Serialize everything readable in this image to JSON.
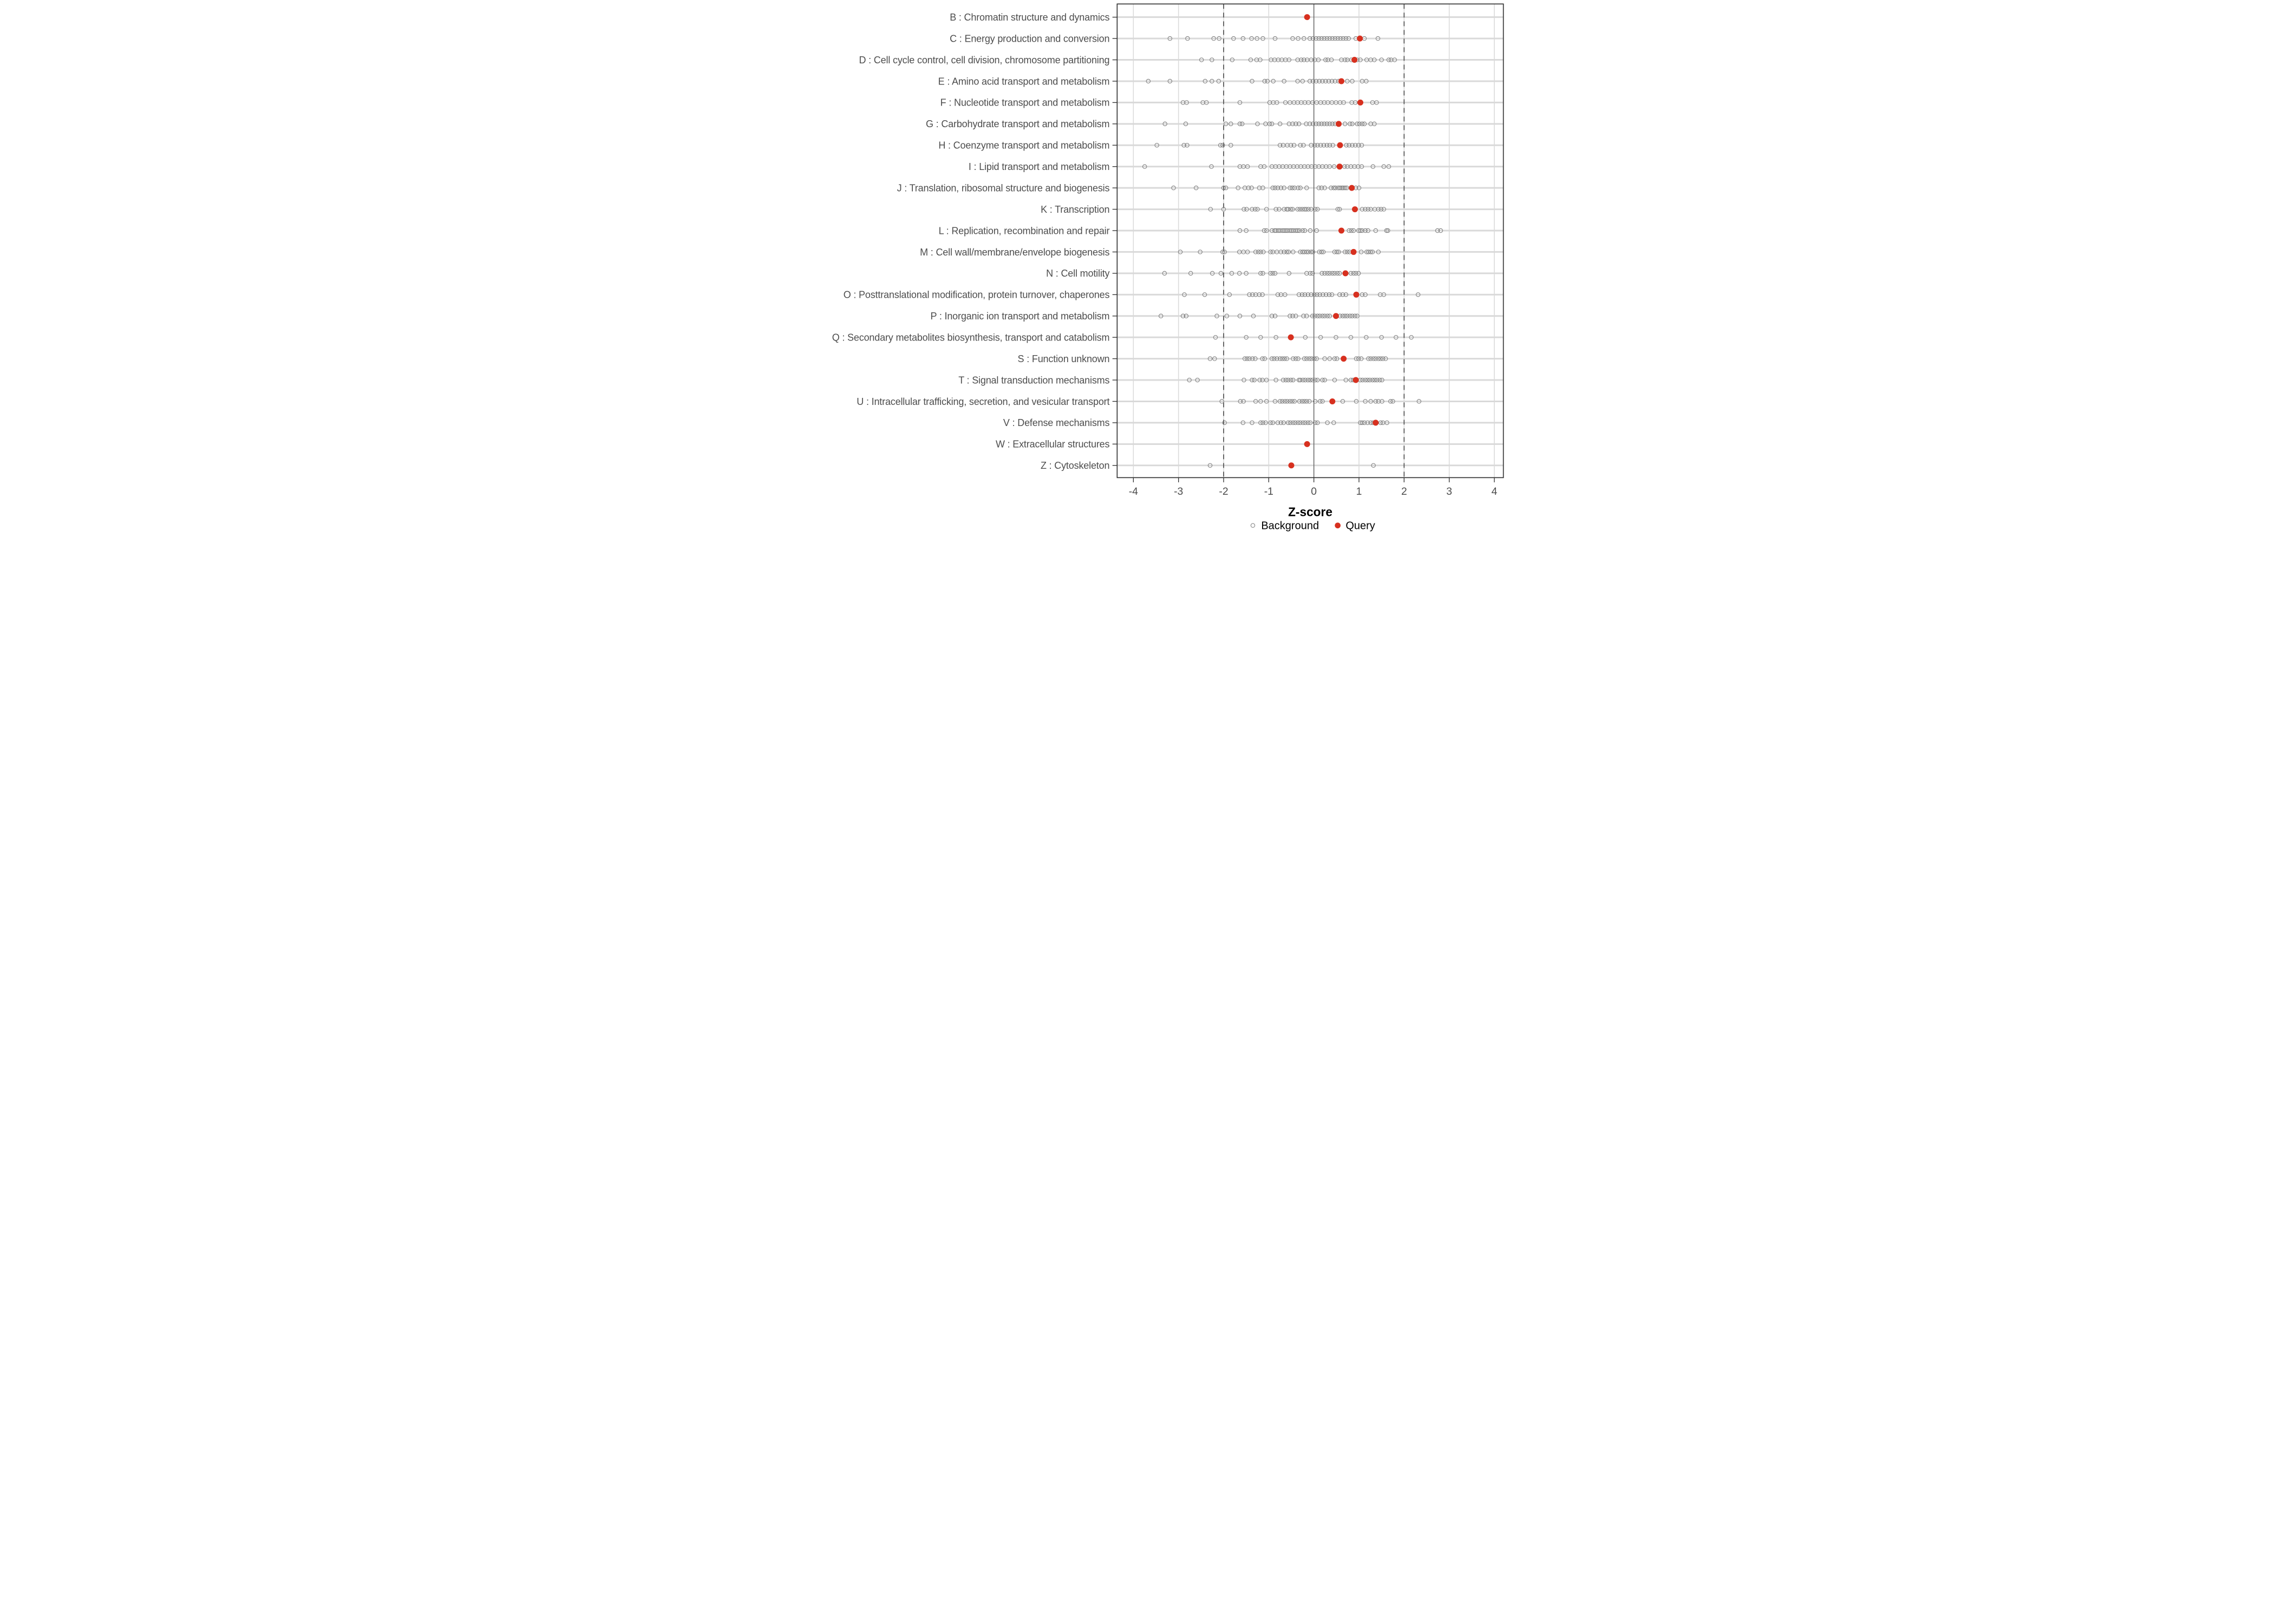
{
  "chart_data": {
    "type": "scatter",
    "title": "",
    "xlabel": "Z-score",
    "ylabel": "",
    "xlim": [
      -4.35,
      4.2
    ],
    "x_ticks": [
      -4,
      -3,
      -2,
      -1,
      0,
      1,
      2,
      3,
      4
    ],
    "grid": "on",
    "reference_lines": {
      "solid_at": 0,
      "dashed_at": [
        -2,
        2
      ]
    },
    "legend_position": "bottom-center",
    "legend": [
      {
        "label": "Background",
        "marker": "open-circle",
        "color": "#7f7f7f"
      },
      {
        "label": "Query",
        "marker": "filled-circle",
        "color": "#d7301f"
      }
    ],
    "colors": {
      "query": "#d7301f",
      "background_stroke": "#7f7f7f",
      "grid_light": "#d9d9d9",
      "zero_line": "#595959",
      "dashed_line": "#4d4d4d",
      "panel_border": "#333333",
      "tick_mark": "#333333",
      "label_text": "#4d4d4d"
    },
    "series_note": "one row per COG category; query = red dot z-score; background = open gray circles z-scores",
    "categories": [
      {
        "code": "B",
        "label": "B : Chromatin structure and dynamics",
        "query": -0.15,
        "background": []
      },
      {
        "code": "C",
        "label": "C : Energy production and conversion",
        "query": 1.02,
        "background": [
          -3.19,
          -2.8,
          -2.22,
          -2.1,
          -1.78,
          -1.57,
          -1.38,
          -1.26,
          -1.13,
          -0.86,
          -0.47,
          -0.35,
          -0.22,
          -0.09,
          -0.02,
          0.05,
          0.11,
          0.17,
          0.23,
          0.29,
          0.35,
          0.41,
          0.47,
          0.53,
          0.59,
          0.65,
          0.71,
          0.77,
          0.93,
          1.12,
          1.42
        ]
      },
      {
        "code": "D",
        "label": "D : Cell cycle control, cell division, chromosome partitioning",
        "query": 0.9,
        "background": [
          -2.49,
          -2.26,
          -1.81,
          -1.4,
          -1.27,
          -1.19,
          -0.95,
          -0.87,
          -0.79,
          -0.71,
          -0.63,
          -0.55,
          -0.36,
          -0.28,
          -0.22,
          -0.15,
          -0.06,
          0.02,
          0.1,
          0.26,
          0.31,
          0.39,
          0.61,
          0.69,
          0.74,
          0.83,
          0.96,
          1.03,
          1.17,
          1.26,
          1.34,
          1.5,
          1.66,
          1.71,
          1.79
        ]
      },
      {
        "code": "E",
        "label": "E : Amino acid transport and metabolism",
        "query": 0.61,
        "background": [
          -3.67,
          -3.19,
          -2.41,
          -2.26,
          -2.11,
          -1.37,
          -1.09,
          -1.03,
          -0.9,
          -0.66,
          -0.36,
          -0.25,
          -0.09,
          -0.02,
          0.05,
          0.12,
          0.19,
          0.26,
          0.33,
          0.4,
          0.47,
          0.55,
          0.74,
          0.85,
          1.07,
          1.16
        ]
      },
      {
        "code": "F",
        "label": "F : Nucleotide transport and metabolism",
        "query": 1.03,
        "background": [
          -2.9,
          -2.82,
          -2.46,
          -2.38,
          -1.64,
          -0.98,
          -0.9,
          -0.82,
          -0.63,
          -0.53,
          -0.44,
          -0.36,
          -0.28,
          -0.2,
          -0.12,
          -0.03,
          0.06,
          0.15,
          0.23,
          0.31,
          0.4,
          0.49,
          0.58,
          0.66,
          0.84,
          0.92,
          1.3,
          1.39
        ]
      },
      {
        "code": "G",
        "label": "G : Carbohydrate transport and metabolism",
        "query": 0.55,
        "background": [
          -3.3,
          -2.84,
          -1.95,
          -1.84,
          -1.64,
          -1.59,
          -1.25,
          -1.07,
          -0.98,
          -0.93,
          -0.75,
          -0.55,
          -0.47,
          -0.4,
          -0.33,
          -0.17,
          -0.09,
          -0.02,
          0.05,
          0.11,
          0.17,
          0.23,
          0.29,
          0.35,
          0.41,
          0.47,
          0.69,
          0.8,
          0.85,
          0.96,
          1.01,
          1.07,
          1.12,
          1.26,
          1.34
        ]
      },
      {
        "code": "H",
        "label": "H : Coenzyme transport and metabolism",
        "query": 0.58,
        "background": [
          -3.48,
          -2.88,
          -2.81,
          -2.07,
          -2.02,
          -1.84,
          -0.75,
          -0.68,
          -0.59,
          -0.51,
          -0.44,
          -0.3,
          -0.23,
          -0.06,
          0.02,
          0.08,
          0.15,
          0.22,
          0.29,
          0.35,
          0.42,
          0.72,
          0.78,
          0.85,
          0.92,
          0.99,
          1.06
        ]
      },
      {
        "code": "I",
        "label": "I : Lipid transport and metabolism",
        "query": 0.57,
        "background": [
          -3.75,
          -2.27,
          -1.64,
          -1.56,
          -1.47,
          -1.18,
          -1.1,
          -0.93,
          -0.85,
          -0.77,
          -0.69,
          -0.61,
          -0.53,
          -0.45,
          -0.37,
          -0.29,
          -0.21,
          -0.13,
          -0.05,
          0.03,
          0.11,
          0.19,
          0.27,
          0.35,
          0.45,
          0.68,
          0.74,
          0.82,
          0.9,
          0.98,
          1.06,
          1.31,
          1.55,
          1.66
        ]
      },
      {
        "code": "J",
        "label": "J : Translation, ribosomal structure and biogenesis",
        "query": 0.84,
        "background": [
          -3.11,
          -2.61,
          -2.0,
          -1.95,
          -1.68,
          -1.53,
          -1.45,
          -1.38,
          -1.21,
          -1.13,
          -0.91,
          -0.86,
          -0.8,
          -0.73,
          -0.66,
          -0.53,
          -0.48,
          -0.43,
          -0.35,
          -0.3,
          -0.16,
          0.11,
          0.17,
          0.24,
          0.38,
          0.44,
          0.48,
          0.54,
          0.58,
          0.62,
          0.65,
          0.69,
          0.73,
          0.93,
          1.0
        ]
      },
      {
        "code": "K",
        "label": "K : Transcription",
        "query": 0.91,
        "background": [
          -2.29,
          -2.0,
          -1.55,
          -1.49,
          -1.37,
          -1.3,
          -1.25,
          -1.05,
          -0.84,
          -0.77,
          -0.66,
          -0.6,
          -0.57,
          -0.51,
          -0.47,
          -0.36,
          -0.31,
          -0.26,
          -0.21,
          -0.17,
          -0.12,
          -0.06,
          0.03,
          0.08,
          0.53,
          0.57,
          1.07,
          1.14,
          1.2,
          1.26,
          1.35,
          1.43,
          1.49,
          1.55
        ]
      },
      {
        "code": "L",
        "label": "L : Replication, recombination and repair",
        "query": 0.61,
        "background": [
          -1.64,
          -1.5,
          -1.1,
          -1.05,
          -0.93,
          -0.87,
          -0.84,
          -0.79,
          -0.75,
          -0.7,
          -0.66,
          -0.62,
          -0.58,
          -0.53,
          -0.49,
          -0.45,
          -0.4,
          -0.36,
          -0.32,
          -0.25,
          -0.2,
          -0.08,
          0.06,
          0.78,
          0.83,
          0.88,
          0.99,
          1.03,
          1.07,
          1.14,
          1.2,
          1.37,
          1.61,
          1.64,
          2.74,
          2.81
        ]
      },
      {
        "code": "M",
        "label": "M : Cell wall/membrane/envelope biogenesis",
        "query": 0.88,
        "background": [
          -2.96,
          -2.52,
          -2.02,
          -1.98,
          -1.65,
          -1.56,
          -1.47,
          -1.29,
          -1.23,
          -1.18,
          -1.12,
          -0.96,
          -0.91,
          -0.82,
          -0.73,
          -0.66,
          -0.6,
          -0.56,
          -0.46,
          -0.3,
          -0.25,
          -0.21,
          -0.16,
          -0.12,
          -0.06,
          -0.02,
          0.12,
          0.17,
          0.21,
          0.46,
          0.51,
          0.55,
          0.69,
          0.74,
          0.79,
          1.05,
          1.17,
          1.21,
          1.26,
          1.3,
          1.43
        ]
      },
      {
        "code": "N",
        "label": "N : Cell motility",
        "query": 0.7,
        "background": [
          -3.31,
          -2.73,
          -2.25,
          -2.06,
          -1.82,
          -1.65,
          -1.5,
          -1.18,
          -1.13,
          -0.96,
          -0.91,
          -0.86,
          -0.55,
          -0.16,
          -0.08,
          -0.03,
          0.18,
          0.24,
          0.3,
          0.35,
          0.41,
          0.46,
          0.52,
          0.57,
          0.82,
          0.88,
          0.93,
          0.99
        ]
      },
      {
        "code": "O",
        "label": "O : Posttranslational modification, protein turnover, chaperones",
        "query": 0.94,
        "background": [
          -2.87,
          -2.42,
          -1.87,
          -1.43,
          -1.36,
          -1.29,
          -1.21,
          -1.14,
          -0.8,
          -0.73,
          -0.64,
          -0.33,
          -0.26,
          -0.2,
          -0.13,
          -0.06,
          0.01,
          0.07,
          0.13,
          0.2,
          0.27,
          0.34,
          0.4,
          0.57,
          0.64,
          0.71,
          1.07,
          1.14,
          1.47,
          1.55,
          2.31
        ]
      },
      {
        "code": "P",
        "label": "P : Inorganic ion transport and metabolism",
        "query": 0.49,
        "background": [
          -3.39,
          -2.9,
          -2.83,
          -2.15,
          -1.93,
          -1.64,
          -1.34,
          -0.93,
          -0.86,
          -0.53,
          -0.47,
          -0.4,
          -0.23,
          -0.16,
          -0.03,
          0.02,
          0.08,
          0.13,
          0.19,
          0.24,
          0.3,
          0.35,
          0.58,
          0.64,
          0.69,
          0.74,
          0.8,
          0.85,
          0.91,
          0.96
        ]
      },
      {
        "code": "Q",
        "label": "Q : Secondary metabolites biosynthesis, transport and catabolism",
        "query": -0.51,
        "background": [
          -2.18,
          -1.5,
          -1.18,
          -0.84,
          -0.19,
          0.15,
          0.49,
          0.82,
          1.16,
          1.5,
          1.82,
          2.16
        ]
      },
      {
        "code": "S",
        "label": "S : Function unknown",
        "query": 0.66,
        "background": [
          -2.3,
          -2.2,
          -1.53,
          -1.48,
          -1.43,
          -1.36,
          -1.3,
          -1.14,
          -1.09,
          -0.93,
          -0.88,
          -0.82,
          -0.75,
          -0.7,
          -0.65,
          -0.6,
          -0.46,
          -0.4,
          -0.35,
          -0.21,
          -0.16,
          -0.1,
          -0.05,
          0.01,
          0.06,
          0.24,
          0.35,
          0.46,
          0.51,
          0.94,
          0.99,
          1.05,
          1.21,
          1.26,
          1.32,
          1.37,
          1.43,
          1.48,
          1.53,
          1.59
        ]
      },
      {
        "code": "T",
        "label": "T : Signal transduction mechanisms",
        "query": 0.93,
        "background": [
          -2.76,
          -2.58,
          -1.55,
          -1.37,
          -1.32,
          -1.2,
          -1.14,
          -1.05,
          -0.84,
          -0.68,
          -0.62,
          -0.57,
          -0.51,
          -0.46,
          -0.33,
          -0.3,
          -0.24,
          -0.19,
          -0.13,
          -0.08,
          -0.03,
          0.03,
          0.08,
          0.19,
          0.24,
          0.46,
          0.71,
          0.82,
          0.87,
          1.03,
          1.08,
          1.14,
          1.19,
          1.24,
          1.3,
          1.35,
          1.4,
          1.46,
          1.51
        ]
      },
      {
        "code": "U",
        "label": "U : Intracellular trafficking, secretion, and vesicular transport",
        "query": 0.41,
        "background": [
          -2.04,
          -1.63,
          -1.56,
          -1.29,
          -1.18,
          -1.05,
          -0.86,
          -0.75,
          -0.7,
          -0.64,
          -0.59,
          -0.53,
          -0.48,
          -0.43,
          -0.32,
          -0.26,
          -0.21,
          -0.16,
          -0.1,
          0.03,
          0.14,
          0.19,
          0.64,
          0.94,
          1.14,
          1.26,
          1.37,
          1.43,
          1.51,
          1.7,
          1.75,
          2.33
        ]
      },
      {
        "code": "V",
        "label": "V : Defense mechanisms",
        "query": 1.37,
        "background": [
          -1.98,
          -1.57,
          -1.37,
          -1.18,
          -1.13,
          -1.07,
          -0.96,
          -0.91,
          -0.8,
          -0.73,
          -0.67,
          -0.57,
          -0.52,
          -0.46,
          -0.41,
          -0.35,
          -0.3,
          -0.24,
          -0.19,
          -0.13,
          -0.08,
          0.03,
          0.08,
          0.3,
          0.44,
          1.03,
          1.07,
          1.12,
          1.19,
          1.26,
          1.31,
          1.48,
          1.53,
          1.62
        ]
      },
      {
        "code": "W",
        "label": "W : Extracellular structures",
        "query": -0.15,
        "background": []
      },
      {
        "code": "Z",
        "label": "Z : Cytoskeleton",
        "query": -0.5,
        "background": [
          -2.3,
          1.32
        ]
      }
    ]
  }
}
